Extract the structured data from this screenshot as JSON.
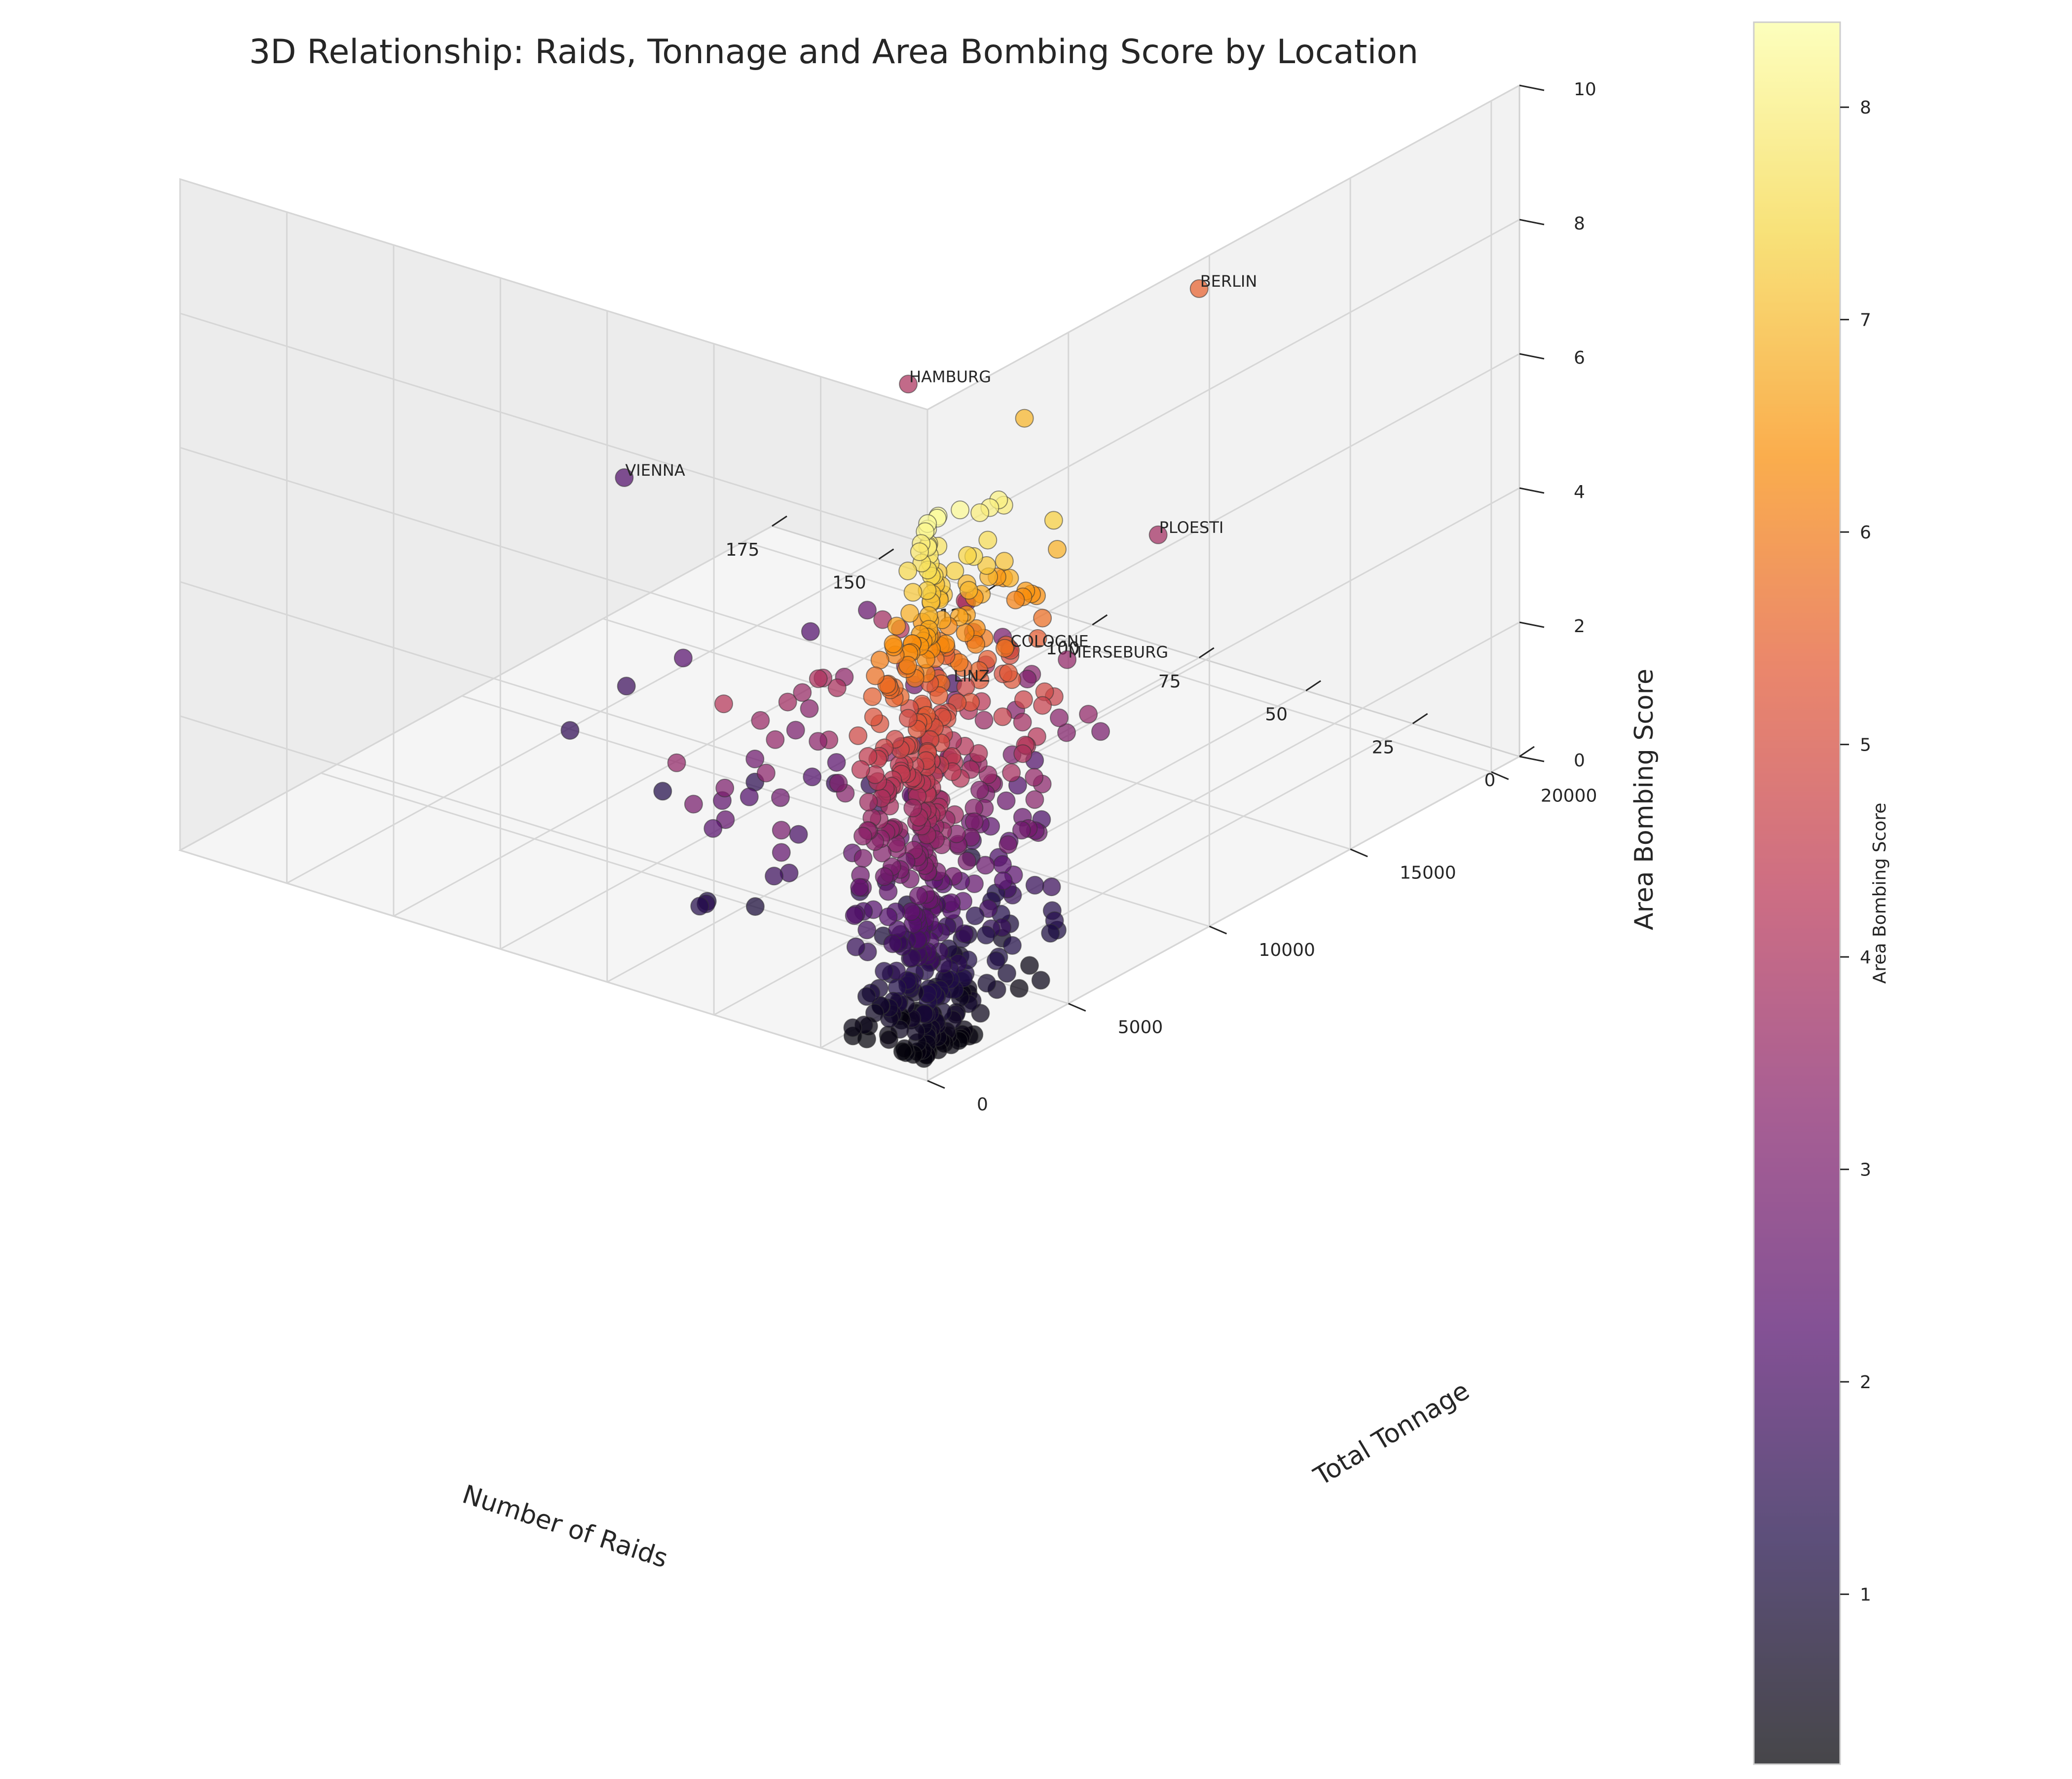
{
  "chart_data": {
    "type": "scatter",
    "title": "3D Relationship: Raids, Tonnage and Area Bombing Score by Location",
    "xlabel": "Number of Raids",
    "ylabel": "Total Tonnage",
    "zlabel": "Area Bombing Score",
    "x_ticks": [
      0,
      25,
      50,
      75,
      100,
      125,
      150,
      175
    ],
    "y_ticks": [
      0,
      5000,
      10000,
      15000,
      20000
    ],
    "z_ticks": [
      0,
      2,
      4,
      6,
      8,
      10
    ],
    "xlim": [
      0,
      175
    ],
    "ylim": [
      0,
      21000
    ],
    "zlim": [
      0,
      10
    ],
    "colormap": "inferno",
    "colorbar": {
      "label": "Area Bombing Score",
      "ticks": [
        1,
        2,
        3,
        4,
        5,
        6,
        7,
        8
      ],
      "range": [
        0.2,
        8.4
      ]
    },
    "grid": true,
    "labeled_points": [
      {
        "name": "BERLIN",
        "x": 75,
        "y": 21000,
        "z": 5.5
      },
      {
        "name": "HAMBURG",
        "x": 120,
        "y": 17500,
        "z": 4.0
      },
      {
        "name": "PLOESTI",
        "x": 45,
        "y": 15000,
        "z": 3.8
      },
      {
        "name": "MERSEBURG",
        "x": 30,
        "y": 9500,
        "z": 3.5
      },
      {
        "name": "COLOGNE",
        "x": 60,
        "y": 12000,
        "z": 2.5
      },
      {
        "name": "LINZ",
        "x": 70,
        "y": 11500,
        "z": 1.9
      },
      {
        "name": "VIENNA",
        "x": 170,
        "y": 15000,
        "z": 2.2
      }
    ],
    "extra_points": [
      {
        "x": 40,
        "y": 9500,
        "z": 6.9
      },
      {
        "x": 35,
        "y": 9000,
        "z": 3.3
      },
      {
        "x": 38,
        "y": 9300,
        "z": 3.1
      },
      {
        "x": 55,
        "y": 11000,
        "z": 3.0
      },
      {
        "x": 70,
        "y": 12000,
        "z": 3.0
      },
      {
        "x": 90,
        "y": 11500,
        "z": 2.6
      },
      {
        "x": 100,
        "y": 11000,
        "z": 2.2
      },
      {
        "x": 110,
        "y": 8000,
        "z": 2.3
      },
      {
        "x": 120,
        "y": 7500,
        "z": 1.8
      },
      {
        "x": 80,
        "y": 6000,
        "z": 1.5
      },
      {
        "x": 95,
        "y": 5000,
        "z": 1.3
      },
      {
        "x": 120,
        "y": 5500,
        "z": 1.6
      },
      {
        "x": 60,
        "y": 5000,
        "z": 2.2
      },
      {
        "x": 50,
        "y": 3000,
        "z": 2.0
      },
      {
        "x": 45,
        "y": 7000,
        "z": 2.8
      }
    ]
  }
}
